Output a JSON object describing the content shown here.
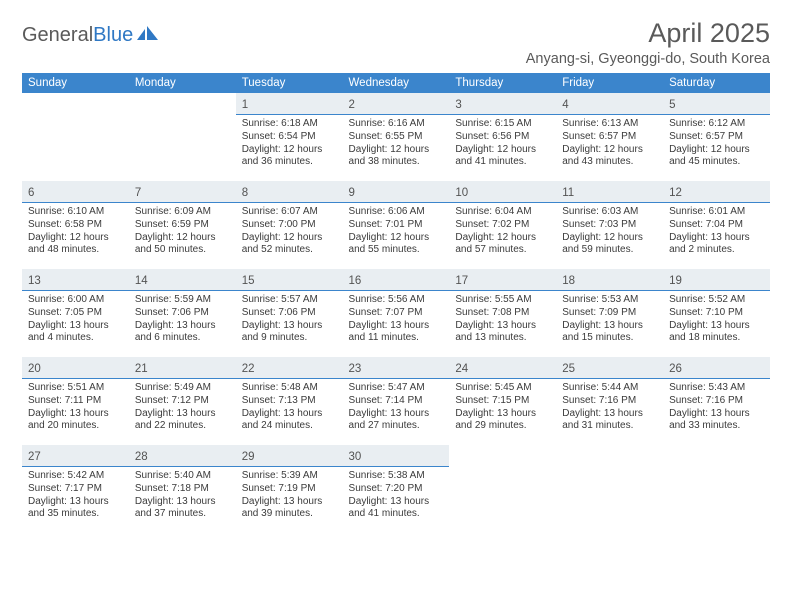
{
  "brand": {
    "general": "General",
    "blue": "Blue"
  },
  "header": {
    "month_title": "April 2025",
    "location": "Anyang-si, Gyeonggi-do, South Korea"
  },
  "style": {
    "header_bg": "#3b85cc",
    "header_text": "#ffffff",
    "daynum_bg": "#e9eef2",
    "daynum_border": "#3b85cc",
    "body_text": "#3b3b3b",
    "page_bg": "#ffffff",
    "title_color": "#5a5a5a",
    "font_family": "Arial, Helvetica, sans-serif",
    "daynum_fontsize": 11.5,
    "detail_fontsize": 10,
    "header_fontsize": 11.5,
    "title_fontsize": 27,
    "location_fontsize": 14.5
  },
  "weekdays": [
    "Sunday",
    "Monday",
    "Tuesday",
    "Wednesday",
    "Thursday",
    "Friday",
    "Saturday"
  ],
  "weeks": [
    [
      null,
      null,
      {
        "n": "1",
        "sr": "6:18 AM",
        "ss": "6:54 PM",
        "dl": "12 hours and 36 minutes."
      },
      {
        "n": "2",
        "sr": "6:16 AM",
        "ss": "6:55 PM",
        "dl": "12 hours and 38 minutes."
      },
      {
        "n": "3",
        "sr": "6:15 AM",
        "ss": "6:56 PM",
        "dl": "12 hours and 41 minutes."
      },
      {
        "n": "4",
        "sr": "6:13 AM",
        "ss": "6:57 PM",
        "dl": "12 hours and 43 minutes."
      },
      {
        "n": "5",
        "sr": "6:12 AM",
        "ss": "6:57 PM",
        "dl": "12 hours and 45 minutes."
      }
    ],
    [
      {
        "n": "6",
        "sr": "6:10 AM",
        "ss": "6:58 PM",
        "dl": "12 hours and 48 minutes."
      },
      {
        "n": "7",
        "sr": "6:09 AM",
        "ss": "6:59 PM",
        "dl": "12 hours and 50 minutes."
      },
      {
        "n": "8",
        "sr": "6:07 AM",
        "ss": "7:00 PM",
        "dl": "12 hours and 52 minutes."
      },
      {
        "n": "9",
        "sr": "6:06 AM",
        "ss": "7:01 PM",
        "dl": "12 hours and 55 minutes."
      },
      {
        "n": "10",
        "sr": "6:04 AM",
        "ss": "7:02 PM",
        "dl": "12 hours and 57 minutes."
      },
      {
        "n": "11",
        "sr": "6:03 AM",
        "ss": "7:03 PM",
        "dl": "12 hours and 59 minutes."
      },
      {
        "n": "12",
        "sr": "6:01 AM",
        "ss": "7:04 PM",
        "dl": "13 hours and 2 minutes."
      }
    ],
    [
      {
        "n": "13",
        "sr": "6:00 AM",
        "ss": "7:05 PM",
        "dl": "13 hours and 4 minutes."
      },
      {
        "n": "14",
        "sr": "5:59 AM",
        "ss": "7:06 PM",
        "dl": "13 hours and 6 minutes."
      },
      {
        "n": "15",
        "sr": "5:57 AM",
        "ss": "7:06 PM",
        "dl": "13 hours and 9 minutes."
      },
      {
        "n": "16",
        "sr": "5:56 AM",
        "ss": "7:07 PM",
        "dl": "13 hours and 11 minutes."
      },
      {
        "n": "17",
        "sr": "5:55 AM",
        "ss": "7:08 PM",
        "dl": "13 hours and 13 minutes."
      },
      {
        "n": "18",
        "sr": "5:53 AM",
        "ss": "7:09 PM",
        "dl": "13 hours and 15 minutes."
      },
      {
        "n": "19",
        "sr": "5:52 AM",
        "ss": "7:10 PM",
        "dl": "13 hours and 18 minutes."
      }
    ],
    [
      {
        "n": "20",
        "sr": "5:51 AM",
        "ss": "7:11 PM",
        "dl": "13 hours and 20 minutes."
      },
      {
        "n": "21",
        "sr": "5:49 AM",
        "ss": "7:12 PM",
        "dl": "13 hours and 22 minutes."
      },
      {
        "n": "22",
        "sr": "5:48 AM",
        "ss": "7:13 PM",
        "dl": "13 hours and 24 minutes."
      },
      {
        "n": "23",
        "sr": "5:47 AM",
        "ss": "7:14 PM",
        "dl": "13 hours and 27 minutes."
      },
      {
        "n": "24",
        "sr": "5:45 AM",
        "ss": "7:15 PM",
        "dl": "13 hours and 29 minutes."
      },
      {
        "n": "25",
        "sr": "5:44 AM",
        "ss": "7:16 PM",
        "dl": "13 hours and 31 minutes."
      },
      {
        "n": "26",
        "sr": "5:43 AM",
        "ss": "7:16 PM",
        "dl": "13 hours and 33 minutes."
      }
    ],
    [
      {
        "n": "27",
        "sr": "5:42 AM",
        "ss": "7:17 PM",
        "dl": "13 hours and 35 minutes."
      },
      {
        "n": "28",
        "sr": "5:40 AM",
        "ss": "7:18 PM",
        "dl": "13 hours and 37 minutes."
      },
      {
        "n": "29",
        "sr": "5:39 AM",
        "ss": "7:19 PM",
        "dl": "13 hours and 39 minutes."
      },
      {
        "n": "30",
        "sr": "5:38 AM",
        "ss": "7:20 PM",
        "dl": "13 hours and 41 minutes."
      },
      null,
      null,
      null
    ]
  ],
  "labels": {
    "sunrise": "Sunrise: ",
    "sunset": "Sunset: ",
    "daylight": "Daylight: "
  }
}
